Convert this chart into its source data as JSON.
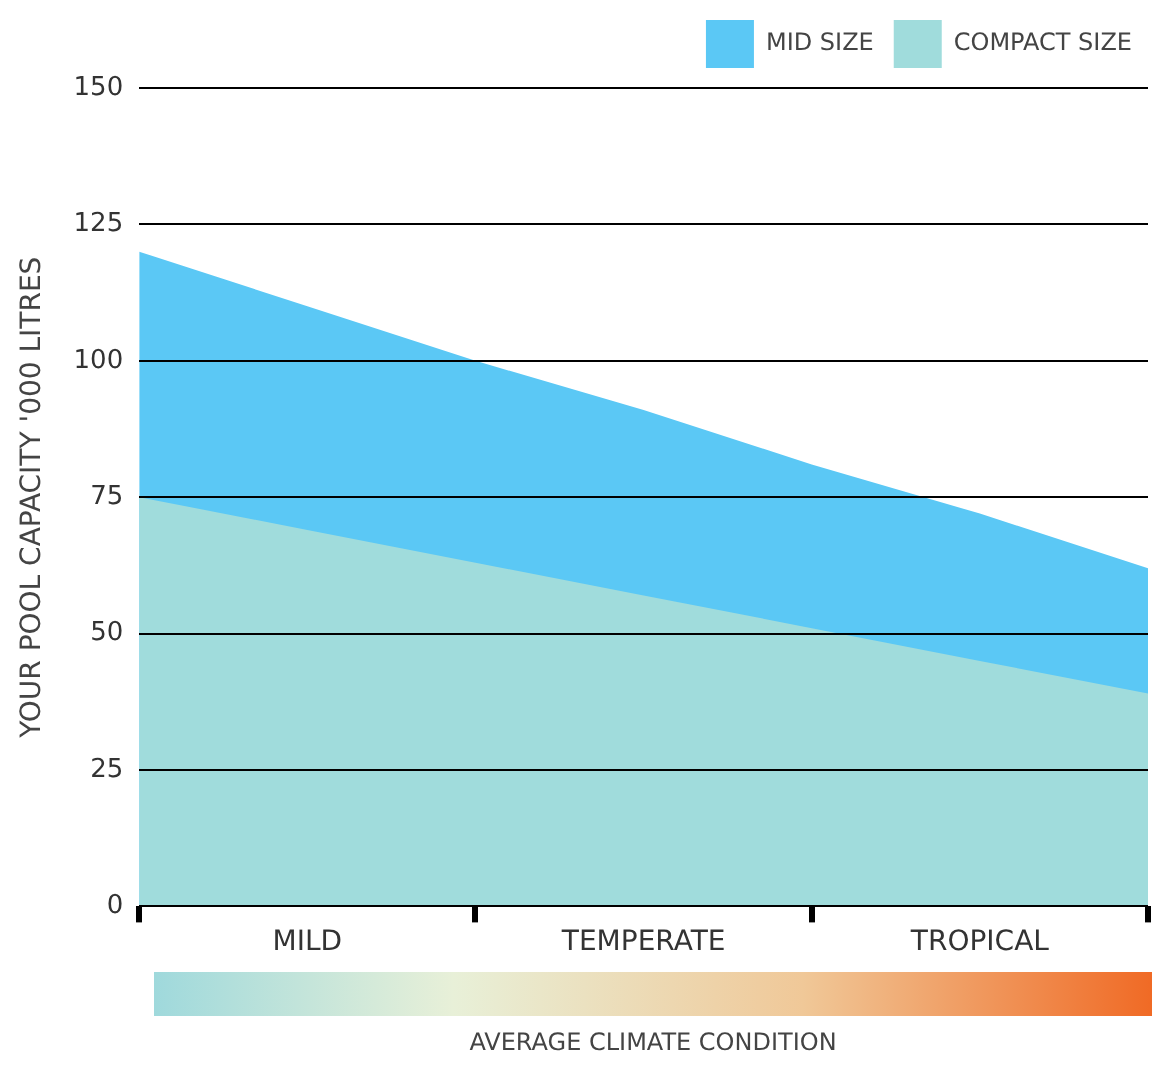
{
  "chart_data": {
    "type": "area",
    "ylabel": "YOUR POOL CAPACITY '000 LITRES",
    "xlabel": "AVERAGE CLIMATE CONDITION",
    "categories": [
      null,
      "MILD",
      null,
      "TEMPERATE",
      null,
      "TROPICAL",
      null
    ],
    "ylim": [
      0,
      150
    ],
    "yticks": [
      0,
      25,
      50,
      75,
      100,
      125,
      150
    ],
    "grid": "y",
    "legend": "top right",
    "series": [
      {
        "name": "MID SIZE",
        "color": "#5bc8f5",
        "values": [
          120,
          110,
          100,
          91,
          81,
          72,
          62
        ]
      },
      {
        "name": "COMPACT SIZE",
        "color": "#a0dcdc",
        "values": [
          75,
          69,
          63,
          57,
          51,
          45,
          39
        ]
      }
    ]
  }
}
